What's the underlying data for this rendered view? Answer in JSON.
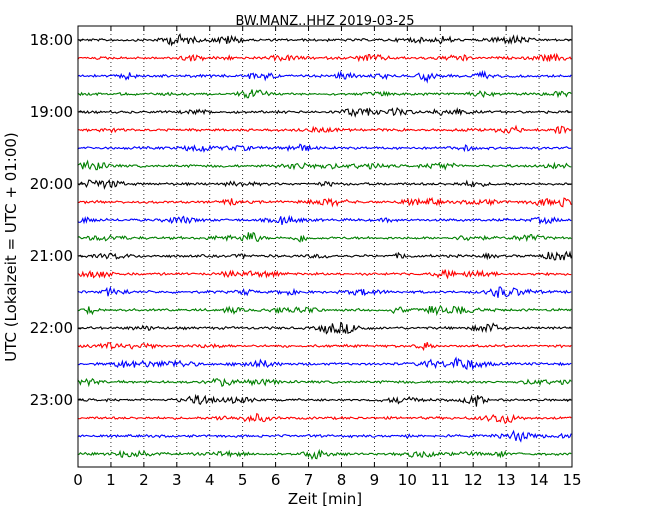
{
  "chart_data": {
    "type": "line",
    "title": "BW.MANZ..HHZ 2019-03-25",
    "xlabel": "Zeit  [min]",
    "ylabel": "UTC (Lokalzeit = UTC + 01:00)",
    "xlim": [
      0,
      15
    ],
    "x_ticks": [
      "0",
      "1",
      "2",
      "3",
      "4",
      "5",
      "6",
      "7",
      "8",
      "9",
      "10",
      "11",
      "12",
      "13",
      "14",
      "15"
    ],
    "y_tick_labels": [
      "18:00",
      "19:00",
      "20:00",
      "21:00",
      "22:00",
      "23:00"
    ],
    "grid": "vertical dotted lines at each minute",
    "trace_interval_minutes": 15,
    "trace_colors": [
      "#000000",
      "#ff0000",
      "#0000ff",
      "#008000"
    ],
    "trace_count": 24
  }
}
